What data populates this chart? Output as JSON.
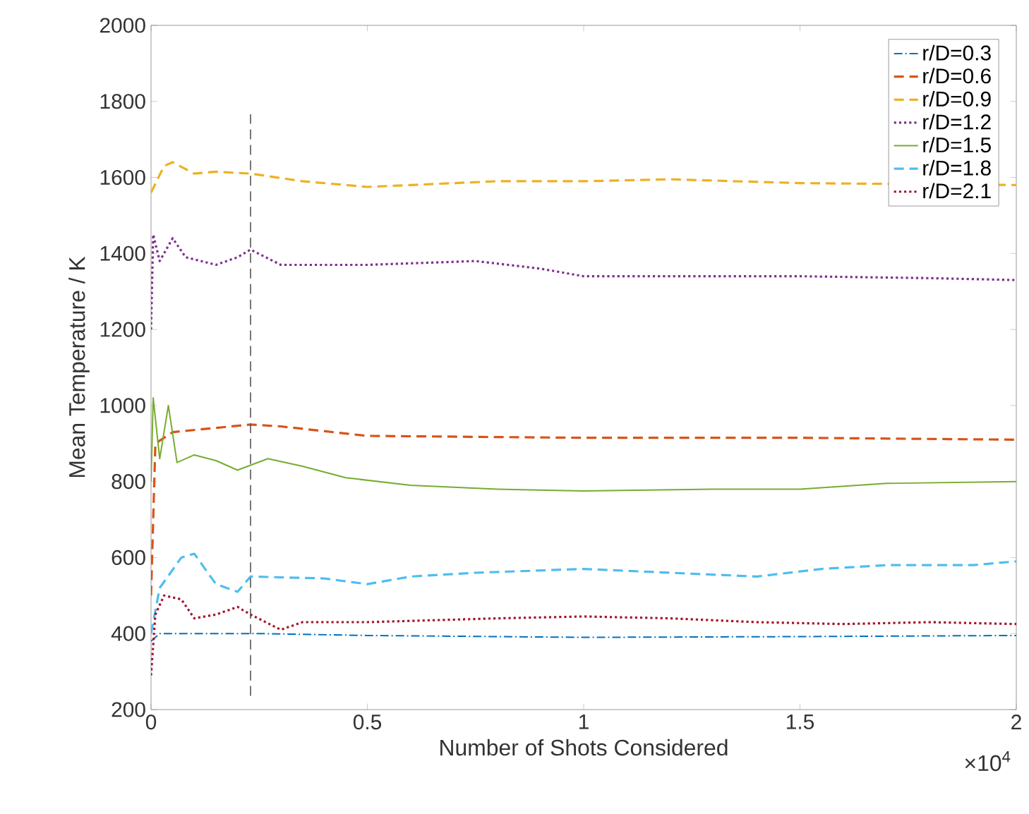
{
  "chart_data": {
    "type": "line",
    "xlabel": "Number of Shots Considered",
    "ylabel": "Mean Temperature / K",
    "annotations": [
      "×10$^{4}$"
    ],
    "xlim": [
      0,
      2
    ],
    "xticks": [
      0,
      0.5,
      1,
      1.5,
      2
    ],
    "ylim": [
      200,
      2000
    ],
    "yticks": [
      200,
      400,
      600,
      800,
      1000,
      1200,
      1400,
      1600,
      1800,
      2000
    ],
    "grid": false,
    "legend": "top right",
    "ref_lines": [
      {
        "axis": "x",
        "value": 0.23,
        "color": "#555555",
        "line_style": "dashed"
      }
    ],
    "series": [
      {
        "name": "r/D=0.3",
        "color": "#0072bd",
        "line_style": "dashdot",
        "x": [
          0,
          0.02,
          0.25,
          0.5,
          1,
          1.5,
          2
        ],
        "values": [
          380,
          400,
          400,
          395,
          390,
          392,
          395
        ]
      },
      {
        "name": "r/D=0.6",
        "color": "#d95319",
        "line_style": "dashed",
        "x": [
          0,
          0.01,
          0.05,
          0.23,
          0.3,
          0.5,
          1,
          1.5,
          2
        ],
        "values": [
          500,
          900,
          930,
          950,
          945,
          920,
          915,
          915,
          910
        ]
      },
      {
        "name": "r/D=0.9",
        "color": "#edb120",
        "line_style": "dashed",
        "x": [
          0,
          0.03,
          0.05,
          0.1,
          0.15,
          0.23,
          0.35,
          0.5,
          0.6,
          0.8,
          1.0,
          1.2,
          1.5,
          2
        ],
        "values": [
          1560,
          1630,
          1640,
          1610,
          1615,
          1610,
          1590,
          1575,
          1580,
          1590,
          1590,
          1595,
          1585,
          1580
        ]
      },
      {
        "name": "r/D=1.2",
        "color": "#7e2f8e",
        "line_style": "dotted",
        "x": [
          0,
          0.005,
          0.02,
          0.05,
          0.08,
          0.15,
          0.2,
          0.23,
          0.3,
          0.5,
          0.75,
          0.9,
          1.0,
          1.3,
          1.5,
          1.8,
          2
        ],
        "values": [
          1200,
          1450,
          1380,
          1440,
          1390,
          1370,
          1390,
          1410,
          1370,
          1370,
          1380,
          1360,
          1340,
          1340,
          1340,
          1335,
          1330
        ]
      },
      {
        "name": "r/D=1.5",
        "color": "#77ac30",
        "line_style": "solid",
        "x": [
          0,
          0.005,
          0.02,
          0.04,
          0.06,
          0.1,
          0.15,
          0.2,
          0.27,
          0.35,
          0.45,
          0.6,
          0.8,
          1.0,
          1.3,
          1.5,
          1.7,
          2
        ],
        "values": [
          800,
          1020,
          860,
          1000,
          850,
          870,
          855,
          830,
          860,
          840,
          810,
          790,
          780,
          775,
          780,
          780,
          795,
          800
        ]
      },
      {
        "name": "r/D=1.8",
        "color": "#4dbeee",
        "line_style": "dashed",
        "x": [
          0,
          0.02,
          0.07,
          0.1,
          0.15,
          0.2,
          0.23,
          0.4,
          0.5,
          0.6,
          0.75,
          1.0,
          1.2,
          1.4,
          1.55,
          1.7,
          1.9,
          2
        ],
        "values": [
          400,
          520,
          600,
          610,
          530,
          510,
          550,
          545,
          530,
          550,
          560,
          570,
          560,
          550,
          570,
          580,
          580,
          590
        ]
      },
      {
        "name": "r/D=2.1",
        "color": "#a2142f",
        "line_style": "dotted",
        "x": [
          0,
          0.01,
          0.03,
          0.07,
          0.1,
          0.15,
          0.2,
          0.23,
          0.3,
          0.35,
          0.5,
          0.8,
          1.0,
          1.2,
          1.4,
          1.6,
          1.8,
          2
        ],
        "values": [
          290,
          450,
          500,
          490,
          440,
          450,
          470,
          450,
          410,
          430,
          430,
          440,
          445,
          440,
          430,
          425,
          430,
          425
        ]
      }
    ]
  }
}
